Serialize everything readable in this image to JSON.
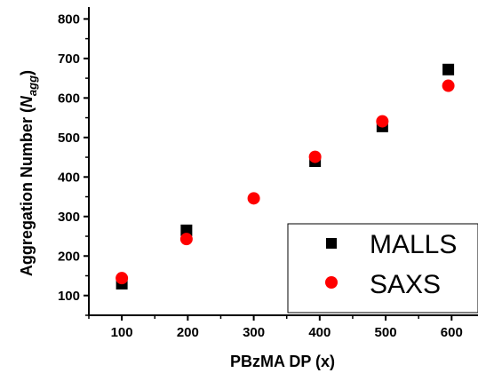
{
  "chart_data": {
    "type": "scatter",
    "xlabel": "PBzMA DP (x)",
    "ylabel": {
      "main": "Aggregation Number (",
      "symbol": "N",
      "subscript": "agg",
      "close": ")"
    },
    "xlim": [
      50,
      640
    ],
    "ylim": [
      50,
      830
    ],
    "x_ticks": [
      100,
      200,
      300,
      400,
      500,
      600
    ],
    "y_ticks": [
      100,
      200,
      300,
      400,
      500,
      600,
      700,
      800
    ],
    "grid": false,
    "legend": "bottom-right",
    "series": [
      {
        "name": "MALLS",
        "marker": "square",
        "color": "#000000",
        "x": [
          100,
          198,
          393,
          495,
          595
        ],
        "y": [
          130,
          265,
          440,
          528,
          672
        ]
      },
      {
        "name": "SAXS",
        "marker": "circle",
        "color": "#ff0000",
        "x": [
          100,
          198,
          300,
          393,
          495,
          595
        ],
        "y": [
          144,
          243,
          346,
          451,
          541,
          631
        ]
      }
    ]
  }
}
